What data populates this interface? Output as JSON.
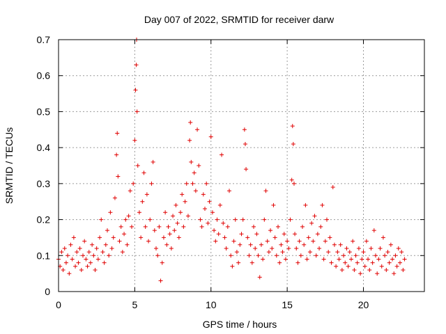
{
  "chart_data": {
    "type": "scatter",
    "title": "Day 007 of 2022, SRMTID for receiver darw",
    "xlabel": "GPS time / hours",
    "ylabel": "SRMTID / TECUs",
    "xlim": [
      0,
      24
    ],
    "ylim": [
      0,
      0.7
    ],
    "x_ticks": [
      0,
      5,
      10,
      15,
      20
    ],
    "x_tick_labels": [
      "0",
      "5",
      "10",
      "15",
      "20"
    ],
    "y_ticks": [
      0,
      0.1,
      0.2,
      0.3,
      0.4,
      0.5,
      0.6,
      0.7
    ],
    "y_tick_labels": [
      "0",
      "0.1",
      "0.2",
      "0.3",
      "0.4",
      "0.5",
      "0.6",
      "0.7"
    ],
    "grid": true,
    "marker": "+",
    "color": "#e00000",
    "series": [
      {
        "name": "SRMTID",
        "points": [
          [
            0.0,
            0.09
          ],
          [
            0.1,
            0.07
          ],
          [
            0.2,
            0.11
          ],
          [
            0.3,
            0.06
          ],
          [
            0.4,
            0.12
          ],
          [
            0.5,
            0.08
          ],
          [
            0.6,
            0.1
          ],
          [
            0.7,
            0.05
          ],
          [
            0.8,
            0.13
          ],
          [
            0.9,
            0.09
          ],
          [
            1.0,
            0.15
          ],
          [
            1.1,
            0.07
          ],
          [
            1.2,
            0.11
          ],
          [
            1.3,
            0.08
          ],
          [
            1.4,
            0.12
          ],
          [
            1.5,
            0.06
          ],
          [
            1.6,
            0.1
          ],
          [
            1.7,
            0.14
          ],
          [
            1.8,
            0.09
          ],
          [
            1.9,
            0.07
          ],
          [
            2.0,
            0.11
          ],
          [
            2.1,
            0.08
          ],
          [
            2.2,
            0.13
          ],
          [
            2.3,
            0.1
          ],
          [
            2.4,
            0.06
          ],
          [
            2.5,
            0.12
          ],
          [
            2.6,
            0.09
          ],
          [
            2.7,
            0.15
          ],
          [
            2.8,
            0.2
          ],
          [
            2.9,
            0.11
          ],
          [
            3.0,
            0.08
          ],
          [
            3.1,
            0.13
          ],
          [
            3.2,
            0.17
          ],
          [
            3.3,
            0.1
          ],
          [
            3.4,
            0.22
          ],
          [
            3.5,
            0.12
          ],
          [
            3.6,
            0.15
          ],
          [
            3.7,
            0.26
          ],
          [
            3.8,
            0.38
          ],
          [
            3.85,
            0.44
          ],
          [
            3.9,
            0.32
          ],
          [
            4.0,
            0.14
          ],
          [
            4.1,
            0.18
          ],
          [
            4.2,
            0.11
          ],
          [
            4.3,
            0.16
          ],
          [
            4.4,
            0.2
          ],
          [
            4.5,
            0.13
          ],
          [
            4.6,
            0.21
          ],
          [
            4.7,
            0.28
          ],
          [
            4.8,
            0.18
          ],
          [
            4.9,
            0.3
          ],
          [
            5.0,
            0.42
          ],
          [
            5.05,
            0.56
          ],
          [
            5.1,
            0.63
          ],
          [
            5.12,
            0.7
          ],
          [
            5.15,
            0.5
          ],
          [
            5.2,
            0.35
          ],
          [
            5.3,
            0.22
          ],
          [
            5.4,
            0.15
          ],
          [
            5.5,
            0.25
          ],
          [
            5.6,
            0.33
          ],
          [
            5.7,
            0.18
          ],
          [
            5.8,
            0.27
          ],
          [
            5.9,
            0.14
          ],
          [
            6.0,
            0.2
          ],
          [
            6.1,
            0.3
          ],
          [
            6.2,
            0.36
          ],
          [
            6.3,
            0.17
          ],
          [
            6.4,
            0.12
          ],
          [
            6.5,
            0.1
          ],
          [
            6.6,
            0.18
          ],
          [
            6.7,
            0.03
          ],
          [
            6.8,
            0.08
          ],
          [
            6.9,
            0.15
          ],
          [
            7.0,
            0.22
          ],
          [
            7.1,
            0.13
          ],
          [
            7.2,
            0.18
          ],
          [
            7.3,
            0.16
          ],
          [
            7.4,
            0.12
          ],
          [
            7.5,
            0.21
          ],
          [
            7.6,
            0.17
          ],
          [
            7.7,
            0.24
          ],
          [
            7.8,
            0.19
          ],
          [
            7.9,
            0.15
          ],
          [
            8.0,
            0.22
          ],
          [
            8.1,
            0.27
          ],
          [
            8.2,
            0.18
          ],
          [
            8.3,
            0.25
          ],
          [
            8.4,
            0.3
          ],
          [
            8.5,
            0.21
          ],
          [
            8.6,
            0.42
          ],
          [
            8.65,
            0.47
          ],
          [
            8.7,
            0.36
          ],
          [
            8.8,
            0.3
          ],
          [
            8.9,
            0.33
          ],
          [
            9.0,
            0.28
          ],
          [
            9.1,
            0.45
          ],
          [
            9.2,
            0.35
          ],
          [
            9.3,
            0.2
          ],
          [
            9.4,
            0.18
          ],
          [
            9.5,
            0.27
          ],
          [
            9.6,
            0.23
          ],
          [
            9.7,
            0.3
          ],
          [
            9.8,
            0.19
          ],
          [
            9.9,
            0.25
          ],
          [
            10.0,
            0.43
          ],
          [
            10.1,
            0.22
          ],
          [
            10.2,
            0.17
          ],
          [
            10.3,
            0.14
          ],
          [
            10.4,
            0.2
          ],
          [
            10.5,
            0.16
          ],
          [
            10.6,
            0.24
          ],
          [
            10.7,
            0.38
          ],
          [
            10.8,
            0.19
          ],
          [
            10.9,
            0.15
          ],
          [
            11.0,
            0.12
          ],
          [
            11.1,
            0.18
          ],
          [
            11.2,
            0.28
          ],
          [
            11.3,
            0.1
          ],
          [
            11.4,
            0.07
          ],
          [
            11.5,
            0.14
          ],
          [
            11.6,
            0.2
          ],
          [
            11.7,
            0.11
          ],
          [
            11.8,
            0.08
          ],
          [
            11.9,
            0.13
          ],
          [
            12.0,
            0.16
          ],
          [
            12.1,
            0.2
          ],
          [
            12.2,
            0.45
          ],
          [
            12.25,
            0.41
          ],
          [
            12.3,
            0.34
          ],
          [
            12.4,
            0.15
          ],
          [
            12.5,
            0.1
          ],
          [
            12.6,
            0.13
          ],
          [
            12.7,
            0.08
          ],
          [
            12.8,
            0.18
          ],
          [
            12.9,
            0.12
          ],
          [
            13.0,
            0.16
          ],
          [
            13.1,
            0.1
          ],
          [
            13.2,
            0.04
          ],
          [
            13.3,
            0.13
          ],
          [
            13.4,
            0.09
          ],
          [
            13.5,
            0.2
          ],
          [
            13.6,
            0.28
          ],
          [
            13.7,
            0.14
          ],
          [
            13.8,
            0.11
          ],
          [
            13.9,
            0.17
          ],
          [
            14.0,
            0.12
          ],
          [
            14.1,
            0.24
          ],
          [
            14.2,
            0.15
          ],
          [
            14.3,
            0.1
          ],
          [
            14.4,
            0.18
          ],
          [
            14.5,
            0.08
          ],
          [
            14.6,
            0.13
          ],
          [
            14.7,
            0.11
          ],
          [
            14.8,
            0.16
          ],
          [
            14.9,
            0.09
          ],
          [
            15.0,
            0.14
          ],
          [
            15.1,
            0.12
          ],
          [
            15.2,
            0.2
          ],
          [
            15.3,
            0.31
          ],
          [
            15.35,
            0.46
          ],
          [
            15.4,
            0.41
          ],
          [
            15.45,
            0.3
          ],
          [
            15.5,
            0.16
          ],
          [
            15.6,
            0.12
          ],
          [
            15.7,
            0.08
          ],
          [
            15.8,
            0.14
          ],
          [
            15.9,
            0.1
          ],
          [
            16.0,
            0.18
          ],
          [
            16.1,
            0.13
          ],
          [
            16.2,
            0.24
          ],
          [
            16.3,
            0.09
          ],
          [
            16.4,
            0.15
          ],
          [
            16.5,
            0.11
          ],
          [
            16.6,
            0.19
          ],
          [
            16.7,
            0.14
          ],
          [
            16.8,
            0.21
          ],
          [
            16.9,
            0.1
          ],
          [
            17.0,
            0.16
          ],
          [
            17.1,
            0.12
          ],
          [
            17.2,
            0.18
          ],
          [
            17.3,
            0.24
          ],
          [
            17.4,
            0.09
          ],
          [
            17.5,
            0.14
          ],
          [
            17.6,
            0.2
          ],
          [
            17.7,
            0.11
          ],
          [
            17.8,
            0.15
          ],
          [
            17.9,
            0.08
          ],
          [
            18.0,
            0.29
          ],
          [
            18.1,
            0.13
          ],
          [
            18.2,
            0.07
          ],
          [
            18.3,
            0.11
          ],
          [
            18.4,
            0.09
          ],
          [
            18.5,
            0.13
          ],
          [
            18.6,
            0.06
          ],
          [
            18.7,
            0.1
          ],
          [
            18.8,
            0.08
          ],
          [
            18.9,
            0.12
          ],
          [
            19.0,
            0.07
          ],
          [
            19.1,
            0.11
          ],
          [
            19.2,
            0.09
          ],
          [
            19.3,
            0.14
          ],
          [
            19.4,
            0.06
          ],
          [
            19.5,
            0.1
          ],
          [
            19.6,
            0.08
          ],
          [
            19.7,
            0.12
          ],
          [
            19.8,
            0.05
          ],
          [
            19.9,
            0.09
          ],
          [
            20.0,
            0.11
          ],
          [
            20.1,
            0.07
          ],
          [
            20.2,
            0.14
          ],
          [
            20.3,
            0.09
          ],
          [
            20.4,
            0.06
          ],
          [
            20.5,
            0.12
          ],
          [
            20.6,
            0.08
          ],
          [
            20.7,
            0.17
          ],
          [
            20.8,
            0.1
          ],
          [
            20.9,
            0.05
          ],
          [
            21.0,
            0.09
          ],
          [
            21.1,
            0.12
          ],
          [
            21.2,
            0.07
          ],
          [
            21.3,
            0.15
          ],
          [
            21.4,
            0.1
          ],
          [
            21.5,
            0.06
          ],
          [
            21.6,
            0.11
          ],
          [
            21.7,
            0.08
          ],
          [
            21.8,
            0.13
          ],
          [
            21.9,
            0.09
          ],
          [
            22.0,
            0.05
          ],
          [
            22.1,
            0.1
          ],
          [
            22.2,
            0.07
          ],
          [
            22.3,
            0.12
          ],
          [
            22.4,
            0.08
          ],
          [
            22.5,
            0.11
          ],
          [
            22.6,
            0.06
          ],
          [
            22.7,
            0.09
          ]
        ]
      }
    ]
  }
}
